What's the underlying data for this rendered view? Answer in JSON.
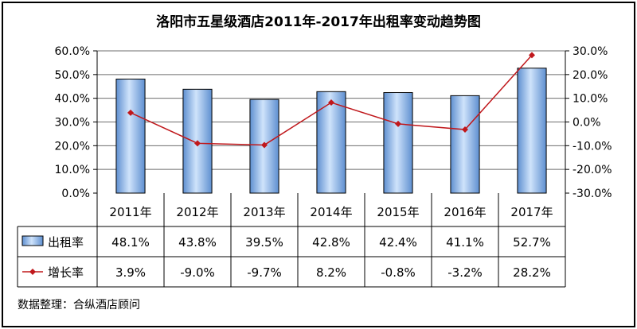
{
  "chart_data": {
    "type": "bar",
    "title": "洛阳市五星级酒店2011年-2017年出租率变动趋势图",
    "categories": [
      "2011年",
      "2012年",
      "2013年",
      "2014年",
      "2015年",
      "2016年",
      "2017年"
    ],
    "series": [
      {
        "name": "出租率",
        "type": "bar",
        "axis": "left",
        "values": [
          48.1,
          43.8,
          39.5,
          42.8,
          42.4,
          41.1,
          52.7
        ],
        "labels": [
          "48.1%",
          "43.8%",
          "39.5%",
          "42.8%",
          "42.4%",
          "41.1%",
          "52.7%"
        ]
      },
      {
        "name": "增长率",
        "type": "line",
        "axis": "right",
        "values": [
          3.9,
          -9.0,
          -9.7,
          8.2,
          -0.8,
          -3.2,
          28.2
        ],
        "labels": [
          "3.9%",
          "-9.0%",
          "-9.7%",
          "8.2%",
          "-0.8%",
          "-3.2%",
          "28.2%"
        ]
      }
    ],
    "y_left": {
      "range": [
        0,
        60
      ],
      "ticks": [
        "0.0%",
        "10.0%",
        "20.0%",
        "30.0%",
        "40.0%",
        "50.0%",
        "60.0%"
      ]
    },
    "y_right": {
      "range": [
        -30,
        30
      ],
      "ticks": [
        "-30.0%",
        "-20.0%",
        "-10.0%",
        "0.0%",
        "10.0%",
        "20.0%",
        "30.0%"
      ]
    },
    "grid": true,
    "legend": "data-table",
    "colors": {
      "bar": "#8fb8e6",
      "line": "#c0181c",
      "grid": "#6e6e6e"
    },
    "source": "数据整理：合纵酒店顾问"
  }
}
